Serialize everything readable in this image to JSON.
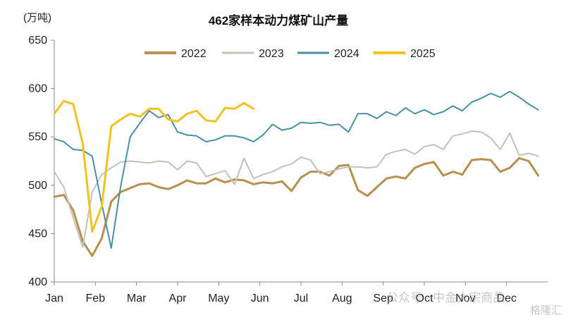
{
  "chart_data": {
    "type": "line",
    "title": "462家样本动力煤矿山产量",
    "unit_label": "(万吨)",
    "xlabel": "",
    "ylabel": "",
    "x_ticks": [
      "Jan",
      "Feb",
      "Mar",
      "Apr",
      "May",
      "Jun",
      "Jul",
      "Aug",
      "Sep",
      "Oct",
      "Nov",
      "Dec"
    ],
    "x_range": [
      1,
      53
    ],
    "ylim": [
      400,
      650
    ],
    "y_ticks": [
      400,
      450,
      500,
      550,
      600,
      650
    ],
    "grid": false,
    "legend_position": "top",
    "series": [
      {
        "name": "2022",
        "color": "#b5904f",
        "width": 3,
        "values": [
          488,
          490,
          474,
          442,
          427,
          445,
          483,
          493,
          497,
          501,
          502,
          498,
          496,
          500,
          505,
          502,
          502,
          507,
          503,
          506,
          505,
          501,
          503,
          502,
          504,
          494,
          508,
          514,
          514,
          510,
          520,
          521,
          495,
          489,
          498,
          507,
          509,
          507,
          518,
          522,
          524,
          510,
          514,
          511,
          526,
          527,
          526,
          514,
          518,
          528,
          525,
          510
        ]
      },
      {
        "name": "2023",
        "color": "#c5c0b8",
        "width": 2,
        "values": [
          514,
          498,
          466,
          436,
          493,
          511,
          518,
          524,
          525,
          524,
          523,
          525,
          524,
          516,
          525,
          523,
          509,
          512,
          515,
          501,
          528,
          507,
          511,
          514,
          519,
          522,
          529,
          526,
          512,
          514,
          517,
          519,
          519,
          518,
          519,
          532,
          535,
          537,
          532,
          540,
          542,
          537,
          551,
          553,
          556,
          555,
          549,
          537,
          554,
          531,
          533,
          530
        ]
      },
      {
        "name": "2024",
        "color": "#4a8fa3",
        "width": 2,
        "values": [
          548,
          545,
          537,
          536,
          530,
          481,
          435,
          499,
          550,
          564,
          577,
          570,
          573,
          555,
          552,
          551,
          545,
          547,
          551,
          551,
          549,
          545,
          552,
          563,
          557,
          559,
          565,
          564,
          565,
          562,
          563,
          555,
          574,
          574,
          569,
          576,
          572,
          580,
          574,
          578,
          573,
          576,
          582,
          577,
          586,
          590,
          595,
          591,
          597,
          591,
          584,
          578
        ]
      },
      {
        "name": "2025",
        "color": "#f2c21f",
        "width": 3,
        "values": [
          574,
          587,
          584,
          543,
          452,
          478,
          561,
          568,
          574,
          571,
          579,
          579,
          568,
          566,
          574,
          577,
          567,
          566,
          580,
          579,
          585,
          579
        ]
      }
    ]
  },
  "watermark": "公众号 · 中金大宗商品",
  "watermark2": "格隆汇"
}
